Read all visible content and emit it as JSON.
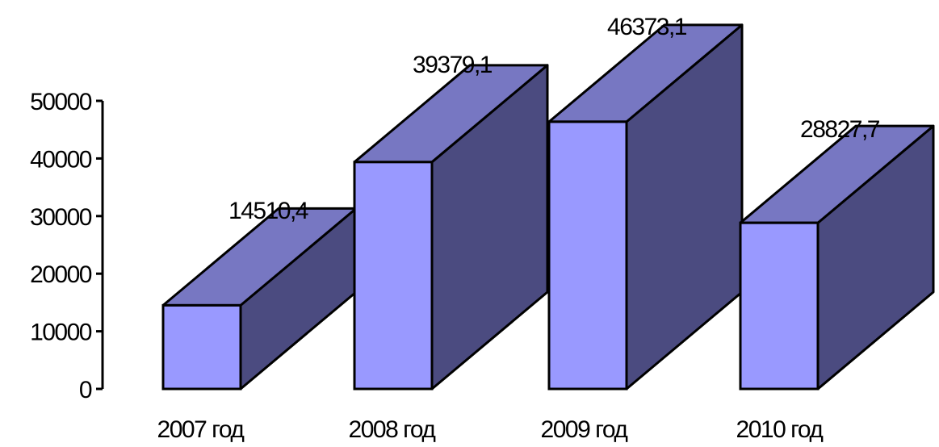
{
  "chart_data": {
    "type": "bar",
    "style": "3d-columns",
    "categories": [
      "2007 год",
      "2008 год",
      "2009 год",
      "2010 год"
    ],
    "values": [
      14510.4,
      39379.1,
      46373.1,
      28827.7
    ],
    "data_labels": [
      "14510,4",
      "39379,1",
      "46373,1",
      "28827,7"
    ],
    "title": "",
    "xlabel": "",
    "ylabel": "",
    "ylim": [
      0,
      50000
    ],
    "yticks": [
      0,
      10000,
      20000,
      30000,
      40000,
      50000
    ],
    "ytick_labels": [
      "0",
      "10000",
      "20000",
      "30000",
      "40000",
      "50000"
    ],
    "grid": false,
    "legend": "none",
    "colors": {
      "front": "#9999ff",
      "top": "#7777c2",
      "side": "#4b4b80",
      "outline": "#000000"
    }
  }
}
